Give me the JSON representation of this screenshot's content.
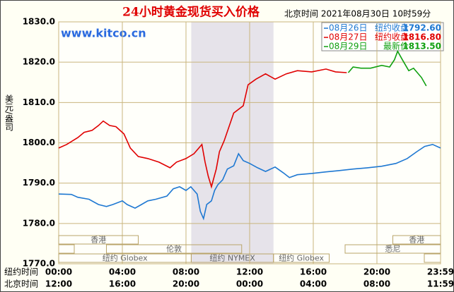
{
  "chart_data": {
    "type": "line",
    "title": "24小时黄金现货买入价格",
    "subtitle": "北京时间  2021年08月30日 10时59分",
    "watermark": "www.kitco.cn",
    "ylabel": "美元/盎司",
    "xlim": [
      0,
      24
    ],
    "ylim": [
      1770,
      1830
    ],
    "yticks": [
      {
        "value": 1770,
        "label": "1770.0"
      },
      {
        "value": 1780,
        "label": "1780.0"
      },
      {
        "value": 1790,
        "label": "1790.0"
      },
      {
        "value": 1800,
        "label": "1800.0"
      },
      {
        "value": 1810,
        "label": "1810.0"
      },
      {
        "value": 1820,
        "label": "1820.0"
      },
      {
        "value": 1830,
        "label": "1830.0"
      }
    ],
    "xaxis_name": "纽约时间",
    "xticks": [
      {
        "value": 0,
        "label": "00:00"
      },
      {
        "value": 4,
        "label": "04:00"
      },
      {
        "value": 8,
        "label": "08:00"
      },
      {
        "value": 12,
        "label": "12:00"
      },
      {
        "value": 16,
        "label": "16:00"
      },
      {
        "value": 20,
        "label": "20:00"
      },
      {
        "value": 24,
        "label": "23:59"
      }
    ],
    "x2axis_name": "北京时间",
    "x2ticks": [
      {
        "value": 0,
        "label": "12:00"
      },
      {
        "value": 4,
        "label": "16:00"
      },
      {
        "value": 8,
        "label": "20:00"
      },
      {
        "value": 12,
        "label": "00:00"
      },
      {
        "value": 16,
        "label": "04:00"
      },
      {
        "value": 20,
        "label": "08:00"
      },
      {
        "value": 24,
        "label": "11:59"
      }
    ],
    "grid": true,
    "shaded_x": [
      8.33,
      13.5
    ],
    "sessions": [
      {
        "label": "香港",
        "start": 0,
        "end": 5
      },
      {
        "label": "香港",
        "start": 21,
        "end": 24
      },
      {
        "label": "伦敦",
        "start": 3,
        "end": 11.5
      },
      {
        "label": "悉尼",
        "start": 18,
        "end": 24
      },
      {
        "label": "纽约 Globex",
        "start": 0,
        "end": 8.33
      },
      {
        "label": "纽约 NYMEX",
        "start": 8.33,
        "end": 13.5
      },
      {
        "label": "纽约 Globex",
        "start": 13.5,
        "end": 17
      }
    ],
    "series": [
      {
        "name": "08月26日",
        "color": "#1e78d2",
        "price_label": "纽约收盘",
        "price": {
          "value": 1792.6,
          "label": "1792.60"
        },
        "x": [
          0,
          0.8,
          1.2,
          1.9,
          2.5,
          3.0,
          3.4,
          4.0,
          4.3,
          4.8,
          5.2,
          5.6,
          6.1,
          6.8,
          7.2,
          7.6,
          8.0,
          8.3,
          8.7,
          8.9,
          9.1,
          9.3,
          9.6,
          9.8,
          10.0,
          10.3,
          10.6,
          11.0,
          11.3,
          11.6,
          12.0,
          12.5,
          13.0,
          13.6,
          14.1,
          14.5,
          15.0,
          15.9,
          16.8,
          17.6,
          18.5,
          19.4,
          20.3,
          21.2,
          21.9,
          22.5,
          23.0,
          23.5,
          24.0
        ],
        "values": [
          1787.3,
          1787.2,
          1786.5,
          1786,
          1784.7,
          1784.2,
          1784.7,
          1785.6,
          1784.7,
          1783.8,
          1784.7,
          1785.6,
          1786,
          1786.8,
          1788.6,
          1789.1,
          1788.2,
          1789.1,
          1787.3,
          1783,
          1781.2,
          1784.7,
          1785.6,
          1788.2,
          1789.6,
          1790.8,
          1793.5,
          1794.3,
          1797.3,
          1795.6,
          1794.9,
          1793.8,
          1792.9,
          1794,
          1792.6,
          1791.4,
          1792.1,
          1792.4,
          1792.8,
          1793.1,
          1793.5,
          1793.8,
          1794.2,
          1794.9,
          1796.1,
          1797.8,
          1799.1,
          1799.6,
          1798.7
        ]
      },
      {
        "name": "08月27日",
        "color": "#e00000",
        "price_label": "纽约收盘",
        "price": {
          "value": 1816.8,
          "label": "1816.80"
        },
        "x": [
          0,
          0.5,
          1.2,
          1.6,
          2.1,
          2.5,
          2.8,
          3.2,
          3.6,
          4.1,
          4.5,
          5.0,
          5.6,
          6.3,
          7.0,
          7.4,
          8.0,
          8.5,
          9.0,
          9.2,
          9.4,
          9.6,
          9.9,
          10.1,
          10.4,
          11.0,
          11.6,
          11.9,
          12.4,
          13.0,
          13.6,
          14.3,
          15.0,
          15.9,
          16.8,
          17.4,
          18.1
        ],
        "values": [
          1798.7,
          1799.6,
          1801.3,
          1802.6,
          1803.1,
          1804.3,
          1805.4,
          1804.3,
          1804,
          1802.2,
          1798.7,
          1796.6,
          1796.1,
          1795.2,
          1793.8,
          1795.2,
          1796.1,
          1797.3,
          1799.6,
          1795.2,
          1791.7,
          1789.1,
          1793.5,
          1797.8,
          1800.5,
          1807.4,
          1809.2,
          1814.4,
          1815.8,
          1817.1,
          1815.8,
          1817.1,
          1817.9,
          1817.6,
          1818.3,
          1817.6,
          1817.4
        ]
      },
      {
        "name": "08月29日",
        "color": "#10a010",
        "price_label": "最新价",
        "price": {
          "value": 1813.5,
          "label": "1813.50"
        },
        "x": [
          18.2,
          18.5,
          19.0,
          19.6,
          20.3,
          20.8,
          21.1,
          21.3,
          21.6,
          22.0,
          22.3,
          22.8,
          23.1
        ],
        "values": [
          1817.4,
          1818.8,
          1818.5,
          1818.5,
          1819.2,
          1818.8,
          1820.6,
          1822.7,
          1820.6,
          1817.9,
          1818.5,
          1816.2,
          1814.1
        ]
      }
    ]
  }
}
